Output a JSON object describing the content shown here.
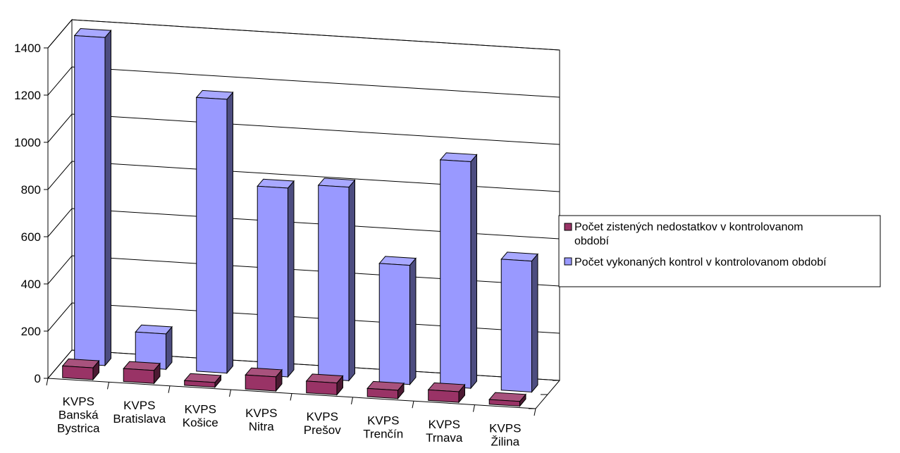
{
  "chart_data": {
    "type": "bar",
    "title": "",
    "xlabel": "",
    "ylabel": "",
    "ylim": [
      0,
      1400
    ],
    "yticks": [
      0,
      200,
      400,
      600,
      800,
      1000,
      1200,
      1400
    ],
    "grid": true,
    "legend_position": "right",
    "categories": [
      [
        "KVPS",
        "Banská",
        "Bystrica"
      ],
      [
        "KVPS",
        "Bratislava"
      ],
      [
        "KVPS",
        "Košice"
      ],
      [
        "KVPS",
        "Nitra"
      ],
      [
        "KVPS",
        "Prešov"
      ],
      [
        "KVPS",
        "Trenčín"
      ],
      [
        "KVPS",
        "Trnava"
      ],
      [
        "KVPS",
        "Žilina"
      ]
    ],
    "series": [
      {
        "name": "Počet zistených nedostatkov v kontrolovanom období",
        "color": "#993366",
        "values": [
          50,
          55,
          20,
          60,
          50,
          35,
          45,
          20
        ]
      },
      {
        "name": "Počet vykonaných kontrol v kontrolovanom období",
        "color": "#9999ff",
        "values": [
          1390,
          150,
          1160,
          800,
          820,
          505,
          960,
          555
        ]
      }
    ]
  }
}
